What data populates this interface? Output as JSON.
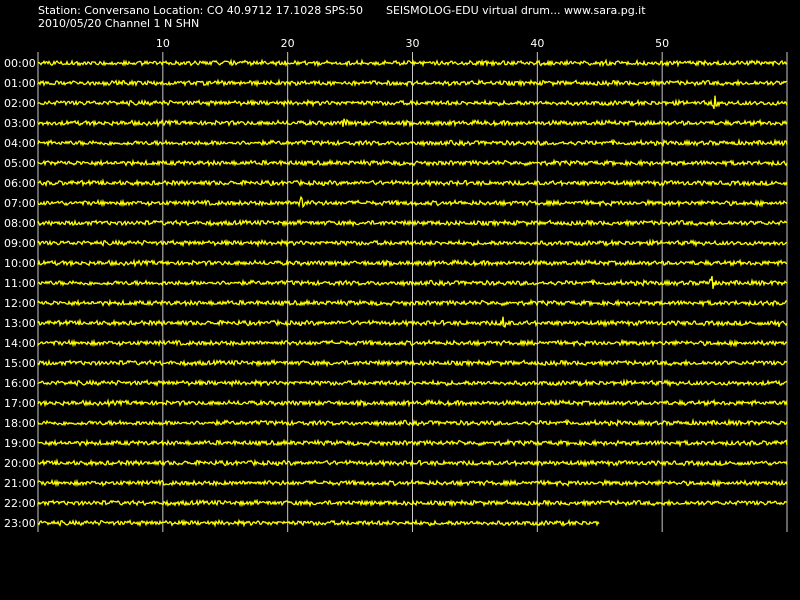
{
  "header": {
    "station_line": "Station: Conversano Location: CO 40.9712 17.1028 SPS:50",
    "app_line": "SEISMOLOG-EDU virtual drum... www.sara.pg.it",
    "date_line": "2010/05/20  Channel 1 N SHN"
  },
  "colors": {
    "background": "#000000",
    "trace": "#ffff00",
    "gridline": "#c8c8c8",
    "text": "#ffffff"
  },
  "axis": {
    "minutes_per_line": 60,
    "minute_tick_labels": [
      "10",
      "20",
      "30",
      "40",
      "50"
    ],
    "hour_labels": [
      "00:00",
      "01:00",
      "02:00",
      "03:00",
      "04:00",
      "05:00",
      "06:00",
      "07:00",
      "08:00",
      "09:00",
      "10:00",
      "11:00",
      "12:00",
      "13:00",
      "14:00",
      "15:00",
      "16:00",
      "17:00",
      "18:00",
      "19:00",
      "20:00",
      "21:00",
      "22:00",
      "23:00"
    ]
  },
  "traces": {
    "last_line_minutes_recorded": 45,
    "spikes": [
      {
        "hour": 2,
        "minute": 54.2
      },
      {
        "hour": 3,
        "minute": 24.6
      },
      {
        "hour": 7,
        "minute": 21.1
      },
      {
        "hour": 11,
        "minute": 54.0
      },
      {
        "hour": 13,
        "minute": 37.3
      },
      {
        "hour": 13,
        "minute": 59.2
      }
    ]
  }
}
